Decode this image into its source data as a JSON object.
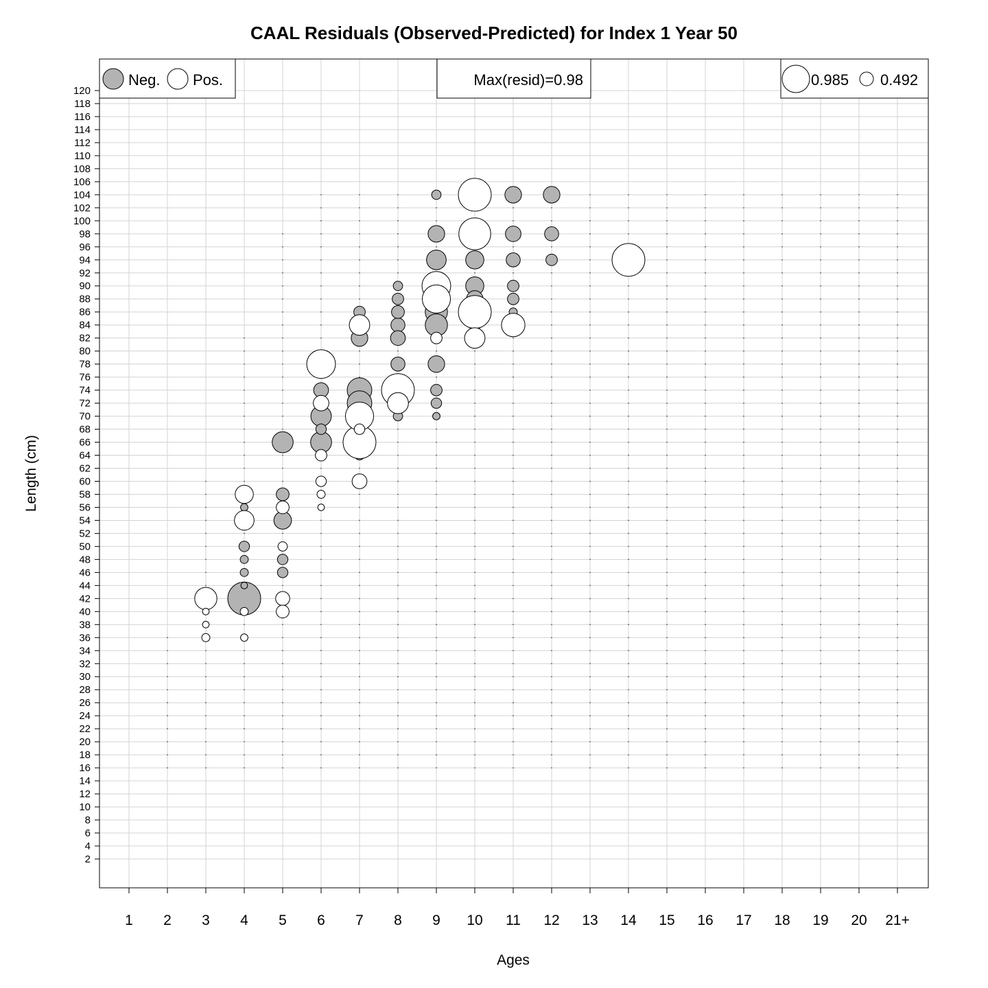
{
  "chart_data": {
    "type": "scatter",
    "title": "CAAL Residuals (Observed-Predicted) for Index 1 Year 50",
    "xlabel": "Ages",
    "ylabel": "Length (cm)",
    "x_categories": [
      "1",
      "2",
      "3",
      "4",
      "5",
      "6",
      "7",
      "8",
      "9",
      "10",
      "11",
      "12",
      "13",
      "14",
      "15",
      "16",
      "17",
      "18",
      "19",
      "20",
      "21+"
    ],
    "y_ticks": [
      2,
      4,
      6,
      8,
      10,
      12,
      14,
      16,
      18,
      20,
      22,
      24,
      26,
      28,
      30,
      32,
      34,
      36,
      38,
      40,
      42,
      44,
      46,
      48,
      50,
      52,
      54,
      56,
      58,
      60,
      62,
      64,
      66,
      68,
      70,
      72,
      74,
      76,
      78,
      80,
      82,
      84,
      86,
      88,
      90,
      92,
      94,
      96,
      98,
      100,
      102,
      104,
      106,
      108,
      110,
      112,
      114,
      116,
      118,
      120
    ],
    "ylim": [
      -2,
      120
    ],
    "grid": true,
    "max_resid_text": "Max(resid)=0.98",
    "legend_sign": {
      "neg_label": "Neg.",
      "pos_label": "Pos.",
      "placement": "top-left"
    },
    "legend_size": {
      "values": [
        "0.985",
        "0.492"
      ],
      "placement": "top-right"
    },
    "max_resid": 0.985,
    "colors": {
      "negative": "#b3b3b3",
      "positive": "#ffffff",
      "grid": "#d3d3d3",
      "outline": "#000000"
    },
    "series": [
      {
        "name": "Neg.",
        "points": [
          [
            4,
            42,
            0.98
          ],
          [
            5,
            66,
            0.4
          ],
          [
            5,
            54,
            0.28
          ],
          [
            5,
            58,
            0.15
          ],
          [
            5,
            48,
            0.1
          ],
          [
            5,
            46,
            0.1
          ],
          [
            4,
            50,
            0.1
          ],
          [
            4,
            48,
            0.06
          ],
          [
            4,
            46,
            0.06
          ],
          [
            4,
            56,
            0.05
          ],
          [
            4,
            44,
            0.04
          ],
          [
            6,
            66,
            0.4
          ],
          [
            6,
            70,
            0.38
          ],
          [
            6,
            74,
            0.2
          ],
          [
            6,
            68,
            0.1
          ],
          [
            7,
            74,
            0.55
          ],
          [
            7,
            72,
            0.55
          ],
          [
            7,
            82,
            0.25
          ],
          [
            7,
            86,
            0.12
          ],
          [
            7,
            64,
            0.08
          ],
          [
            8,
            84,
            0.18
          ],
          [
            8,
            82,
            0.2
          ],
          [
            8,
            86,
            0.15
          ],
          [
            8,
            88,
            0.12
          ],
          [
            8,
            78,
            0.18
          ],
          [
            8,
            90,
            0.08
          ],
          [
            8,
            70,
            0.08
          ],
          [
            9,
            86,
            0.45
          ],
          [
            9,
            84,
            0.45
          ],
          [
            9,
            94,
            0.35
          ],
          [
            9,
            98,
            0.25
          ],
          [
            9,
            78,
            0.25
          ],
          [
            9,
            74,
            0.12
          ],
          [
            9,
            72,
            0.1
          ],
          [
            9,
            70,
            0.05
          ],
          [
            9,
            104,
            0.08
          ],
          [
            10,
            94,
            0.3
          ],
          [
            10,
            90,
            0.3
          ],
          [
            10,
            88,
            0.25
          ],
          [
            10,
            84,
            0.12
          ],
          [
            11,
            104,
            0.25
          ],
          [
            11,
            98,
            0.22
          ],
          [
            11,
            94,
            0.18
          ],
          [
            11,
            90,
            0.12
          ],
          [
            11,
            88,
            0.12
          ],
          [
            11,
            86,
            0.06
          ],
          [
            12,
            104,
            0.25
          ],
          [
            12,
            98,
            0.18
          ],
          [
            12,
            94,
            0.12
          ]
        ]
      },
      {
        "name": "Pos.",
        "points": [
          [
            3,
            42,
            0.45
          ],
          [
            4,
            58,
            0.3
          ],
          [
            4,
            54,
            0.35
          ],
          [
            4,
            40,
            0.06
          ],
          [
            4,
            36,
            0.05
          ],
          [
            5,
            42,
            0.18
          ],
          [
            5,
            40,
            0.15
          ],
          [
            5,
            56,
            0.15
          ],
          [
            5,
            50,
            0.08
          ],
          [
            3,
            36,
            0.06
          ],
          [
            3,
            40,
            0.04
          ],
          [
            3,
            38,
            0.04
          ],
          [
            6,
            78,
            0.75
          ],
          [
            6,
            72,
            0.22
          ],
          [
            6,
            64,
            0.12
          ],
          [
            6,
            60,
            0.1
          ],
          [
            6,
            58,
            0.06
          ],
          [
            6,
            56,
            0.04
          ],
          [
            7,
            66,
            0.98
          ],
          [
            7,
            70,
            0.72
          ],
          [
            7,
            84,
            0.38
          ],
          [
            7,
            60,
            0.2
          ],
          [
            7,
            68,
            0.1
          ],
          [
            8,
            74,
            0.98
          ],
          [
            8,
            72,
            0.4
          ],
          [
            9,
            90,
            0.75
          ],
          [
            9,
            88,
            0.72
          ],
          [
            9,
            82,
            0.12
          ],
          [
            10,
            104,
            0.98
          ],
          [
            10,
            98,
            0.92
          ],
          [
            10,
            86,
            0.98
          ],
          [
            10,
            82,
            0.38
          ],
          [
            11,
            84,
            0.5
          ],
          [
            14,
            94,
            0.98
          ]
        ]
      }
    ]
  }
}
